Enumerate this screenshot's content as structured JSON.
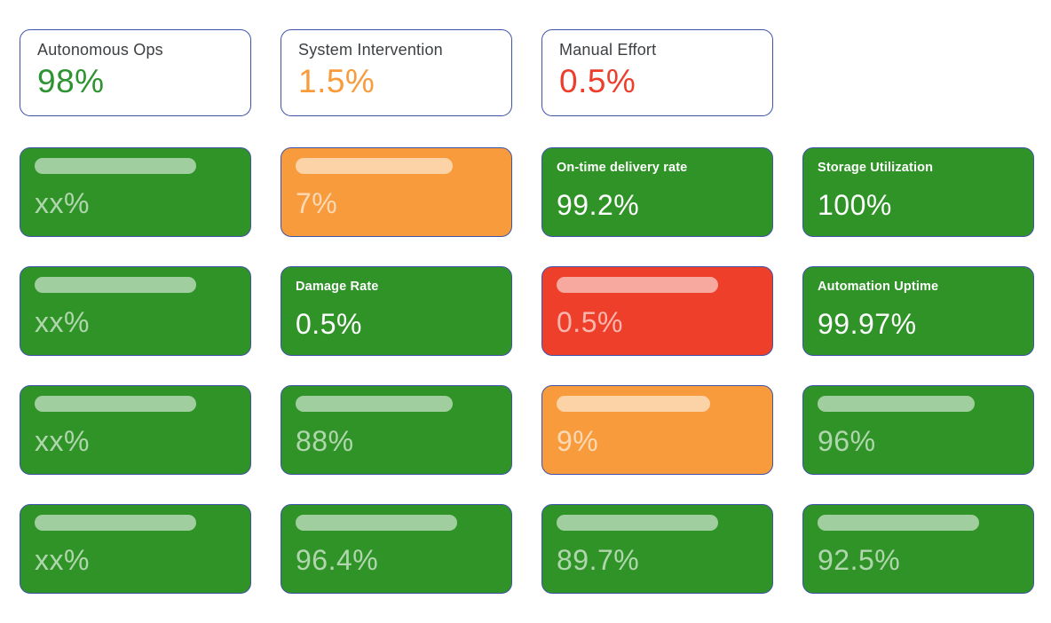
{
  "colors": {
    "green": "#309328",
    "orange": "#f89b3c",
    "red": "#ee3f2b",
    "border_blue": "#3e54a8",
    "summary_label": "#3c4043"
  },
  "summary_cards": [
    {
      "label": "Autonomous Ops",
      "value": "98%",
      "value_color": "#2e9331"
    },
    {
      "label": "System Intervention",
      "value": "1.5%",
      "value_color": "#f89b3a"
    },
    {
      "label": "Manual Effort",
      "value": "0.5%",
      "value_color": "#ee3e2b"
    }
  ],
  "metric_cards": [
    {
      "variant": "green",
      "skeleton": true,
      "bar": true,
      "bar_pct": 80,
      "value": "xx%"
    },
    {
      "variant": "orange",
      "skeleton": true,
      "bar": true,
      "bar_pct": 78,
      "value": "7%"
    },
    {
      "variant": "green",
      "skeleton": false,
      "bar": false,
      "label": "On-time delivery rate",
      "value": "99.2%"
    },
    {
      "variant": "green",
      "skeleton": false,
      "bar": false,
      "label": "Storage Utilization",
      "value": "100%"
    },
    {
      "variant": "green",
      "skeleton": true,
      "bar": true,
      "bar_pct": 80,
      "value": "xx%"
    },
    {
      "variant": "green",
      "skeleton": false,
      "bar": false,
      "label": "Damage Rate",
      "value": "0.5%"
    },
    {
      "variant": "red",
      "skeleton": true,
      "bar": true,
      "bar_pct": 80,
      "value": "0.5%"
    },
    {
      "variant": "green",
      "skeleton": false,
      "bar": false,
      "label": "Automation Uptime",
      "value": "99.97%"
    },
    {
      "variant": "green",
      "skeleton": true,
      "bar": true,
      "bar_pct": 80,
      "value": "xx%"
    },
    {
      "variant": "green",
      "skeleton": true,
      "bar": true,
      "bar_pct": 78,
      "value": "88%"
    },
    {
      "variant": "orange",
      "skeleton": true,
      "bar": true,
      "bar_pct": 76,
      "value": "9%"
    },
    {
      "variant": "green",
      "skeleton": true,
      "bar": true,
      "bar_pct": 78,
      "value": "96%"
    },
    {
      "variant": "green",
      "skeleton": true,
      "bar": true,
      "bar_pct": 80,
      "value": "xx%"
    },
    {
      "variant": "green",
      "skeleton": true,
      "bar": true,
      "bar_pct": 80,
      "value": "96.4%"
    },
    {
      "variant": "green",
      "skeleton": true,
      "bar": true,
      "bar_pct": 80,
      "value": "89.7%"
    },
    {
      "variant": "green",
      "skeleton": true,
      "bar": true,
      "bar_pct": 80,
      "value": "92.5%"
    }
  ]
}
